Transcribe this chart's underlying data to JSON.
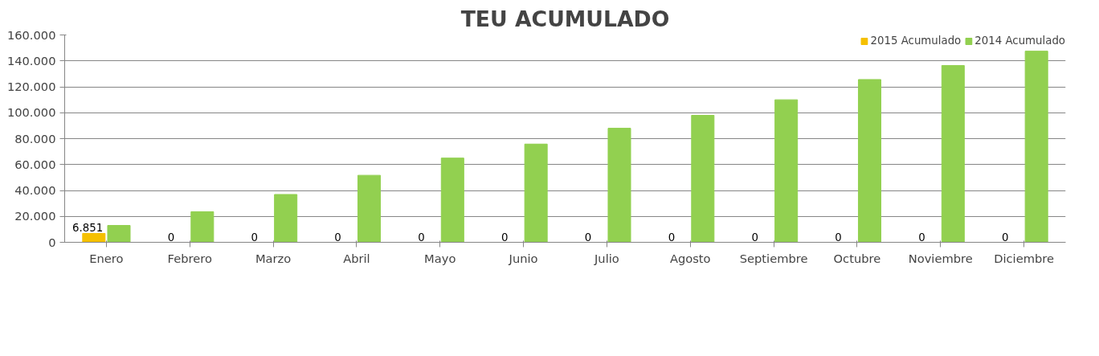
{
  "chart_data": {
    "type": "bar",
    "title": "TEU ACUMULADO",
    "categories": [
      "Enero",
      "Febrero",
      "Marzo",
      "Abril",
      "Mayo",
      "Junio",
      "Julio",
      "Agosto",
      "Septiembre",
      "Octubre",
      "Noviembre",
      "Diciembre"
    ],
    "series": [
      {
        "name": "2015 Acumulado",
        "color": "#f5c000",
        "values": [
          6851,
          0,
          0,
          0,
          0,
          0,
          0,
          0,
          0,
          0,
          0,
          0
        ],
        "value_labels": [
          "6.851",
          "0",
          "0",
          "0",
          "0",
          "0",
          "0",
          "0",
          "0",
          "0",
          "0",
          "0"
        ]
      },
      {
        "name": "2014 Acumulado",
        "color": "#92d050",
        "values": [
          13000,
          23600,
          36900,
          51700,
          65000,
          75800,
          88000,
          98000,
          110000,
          125600,
          136400,
          147500
        ]
      }
    ],
    "ylim": [
      0,
      160000
    ],
    "yticks": [
      {
        "value": 0,
        "label": "0"
      },
      {
        "value": 20000,
        "label": "20.000"
      },
      {
        "value": 40000,
        "label": "40.000"
      },
      {
        "value": 60000,
        "label": "60.000"
      },
      {
        "value": 80000,
        "label": "80.000"
      },
      {
        "value": 100000,
        "label": "100.000"
      },
      {
        "value": 120000,
        "label": "120.000"
      },
      {
        "value": 140000,
        "label": "140.000"
      },
      {
        "value": 160000,
        "label": "160.000"
      }
    ],
    "grid": "y",
    "legend": "top right"
  }
}
